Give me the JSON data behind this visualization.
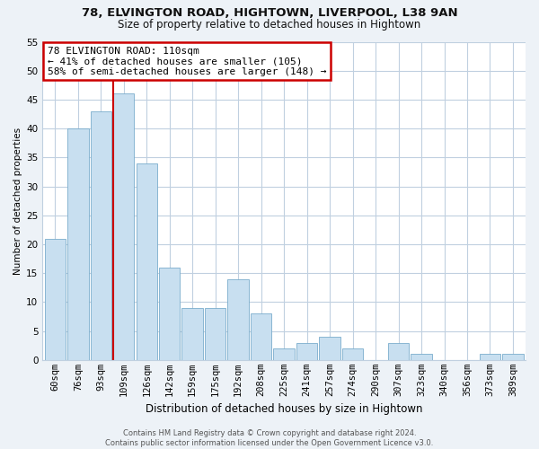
{
  "title1": "78, ELVINGTON ROAD, HIGHTOWN, LIVERPOOL, L38 9AN",
  "title2": "Size of property relative to detached houses in Hightown",
  "xlabel": "Distribution of detached houses by size in Hightown",
  "ylabel": "Number of detached properties",
  "bar_labels": [
    "60sqm",
    "76sqm",
    "93sqm",
    "109sqm",
    "126sqm",
    "142sqm",
    "159sqm",
    "175sqm",
    "192sqm",
    "208sqm",
    "225sqm",
    "241sqm",
    "257sqm",
    "274sqm",
    "290sqm",
    "307sqm",
    "323sqm",
    "340sqm",
    "356sqm",
    "373sqm",
    "389sqm"
  ],
  "bar_values": [
    21,
    40,
    43,
    46,
    34,
    16,
    9,
    9,
    14,
    8,
    2,
    3,
    4,
    2,
    0,
    3,
    1,
    0,
    0,
    1,
    1
  ],
  "bar_fill_color": "#c8dff0",
  "bar_edge_color": "#7aadcc",
  "highlight_line_color": "#cc0000",
  "highlight_bar_index": 3,
  "annotation_text": "78 ELVINGTON ROAD: 110sqm\n← 41% of detached houses are smaller (105)\n58% of semi-detached houses are larger (148) →",
  "annotation_box_facecolor": "#ffffff",
  "annotation_box_edgecolor": "#cc0000",
  "ylim": [
    0,
    55
  ],
  "yticks": [
    0,
    5,
    10,
    15,
    20,
    25,
    30,
    35,
    40,
    45,
    50,
    55
  ],
  "footer_text": "Contains HM Land Registry data © Crown copyright and database right 2024.\nContains public sector information licensed under the Open Government Licence v3.0.",
  "background_color": "#edf2f7",
  "plot_background_color": "#ffffff",
  "grid_color": "#c0d0e0",
  "title1_fontsize": 9.5,
  "title2_fontsize": 8.5,
  "ylabel_fontsize": 7.5,
  "xlabel_fontsize": 8.5,
  "tick_fontsize": 7.5,
  "ann_fontsize": 8.0,
  "footer_fontsize": 6.0
}
